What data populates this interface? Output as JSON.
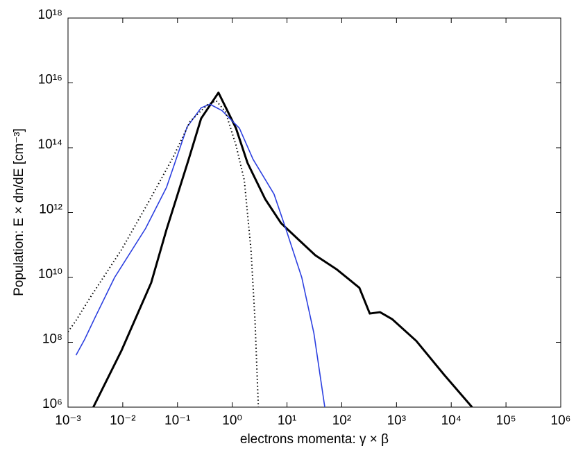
{
  "chart_data": {
    "type": "line",
    "xlabel": "electrons momenta: γ × β",
    "ylabel": "Population: E × dn/dE [cm⁻³]",
    "log_x": true,
    "log_y": true,
    "grid": false,
    "xlim": [
      0.001,
      1000000
    ],
    "ylim": [
      1000000,
      1000000000000000000
    ],
    "xticks": [
      {
        "value": 0.001,
        "label": "10⁻³"
      },
      {
        "value": 0.01,
        "label": "10⁻²"
      },
      {
        "value": 0.1,
        "label": "10⁻¹"
      },
      {
        "value": 1,
        "label": "10⁰"
      },
      {
        "value": 10,
        "label": "10¹"
      },
      {
        "value": 100,
        "label": "10²"
      },
      {
        "value": 1000,
        "label": "10³"
      },
      {
        "value": 10000,
        "label": "10⁴"
      },
      {
        "value": 100000,
        "label": "10⁵"
      },
      {
        "value": 1000000,
        "label": "10⁶"
      }
    ],
    "yticks": [
      {
        "value": 1000000,
        "label": "10⁶"
      },
      {
        "value": 100000000,
        "label": "10⁸"
      },
      {
        "value": 10000000000,
        "label": "10¹⁰"
      },
      {
        "value": 1000000000000,
        "label": "10¹²"
      },
      {
        "value": 100000000000000,
        "label": "10¹⁴"
      },
      {
        "value": 10000000000000000,
        "label": "10¹⁶"
      },
      {
        "value": 1000000000000000000,
        "label": "10¹⁸"
      }
    ],
    "series": [
      {
        "color": "#000000",
        "width": 3,
        "dash": "solid",
        "x": [
          0.0029,
          0.0095,
          0.033,
          0.063,
          0.16,
          0.27,
          0.56,
          1.17,
          1.9,
          4,
          7.8,
          16,
          33,
          80,
          210,
          325,
          500,
          830,
          2300,
          7400,
          24000
        ],
        "values": [
          1000000.0,
          56000000.0,
          6800000000.0,
          300000000000.0,
          44000000000000.0,
          800000000000000.0,
          5000000000000000.0,
          400000000000000.0,
          34000000000000.0,
          2600000000000.0,
          470000000000.0,
          150000000000.0,
          48000000000.0,
          18000000000.0,
          4800000000.0,
          770000000.0,
          850000000.0,
          520000000.0,
          110000000.0,
          10000000.0,
          1000000.0
        ]
      },
      {
        "color": "#2b3fe0",
        "width": 1.6,
        "dash": "solid",
        "x": [
          0.0014,
          0.002,
          0.0031,
          0.0071,
          0.026,
          0.063,
          0.15,
          0.27,
          0.39,
          0.65,
          1.35,
          2.4,
          5.8,
          9.5,
          18.6,
          31,
          49
        ],
        "values": [
          40000000.0,
          120000000.0,
          570000000.0,
          10000000000.0,
          320000000000.0,
          6000000000000.0,
          440000000000000.0,
          1700000000000000.0,
          2200000000000000.0,
          1400000000000000.0,
          400000000000000.0,
          44000000000000.0,
          3700000000000.0,
          320000000000.0,
          10000000000.0,
          190000000.0,
          1000000.0
        ]
      },
      {
        "color": "#000000",
        "width": 2,
        "dash": "dotted",
        "x": [
          0.001,
          0.0014,
          0.0025,
          0.0095,
          0.03,
          0.085,
          0.17,
          0.36,
          0.51,
          0.75,
          1.17,
          1.66,
          2.2,
          2.6,
          3
        ],
        "values": [
          210000000.0,
          470000000.0,
          2300000000.0,
          72000000000.0,
          2200000000000.0,
          55000000000000.0,
          650000000000000.0,
          2200000000000000.0,
          2800000000000000.0,
          1300000000000000.0,
          120000000000000.0,
          10000000000000.0,
          70000000000.0,
          500000000.0,
          1000000.0
        ]
      }
    ]
  }
}
